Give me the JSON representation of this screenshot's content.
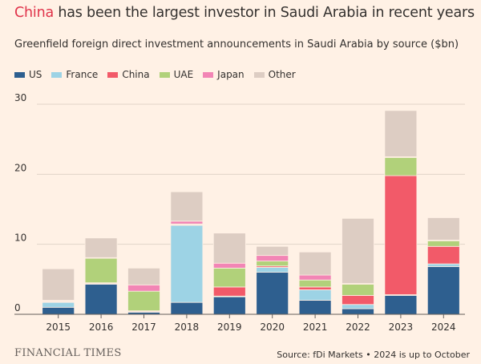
{
  "title_highlight": "China",
  "title_rest": " has been the largest investor in Saudi Arabia in recent years",
  "subtitle": "Greenfield foreign direct investment announcements in Saudi Arabia by source ($bn)",
  "brand": "FINANCIAL TIMES",
  "source": "Source: fDi Markets • 2024 is up to October",
  "colors": {
    "US": "#2e5f8f",
    "France": "#9dd3e5",
    "China": "#f25a69",
    "UAE": "#b1d17a",
    "Japan": "#f285b5",
    "Other": "#ddcdc3",
    "gridline": "#e1d4c8",
    "axis": "#66605c"
  },
  "chart_data": {
    "type": "bar",
    "stacked": true,
    "categories": [
      "2015",
      "2016",
      "2017",
      "2018",
      "2019",
      "2020",
      "2021",
      "2022",
      "2023",
      "2024"
    ],
    "ylim": [
      0,
      30
    ],
    "yticks": [
      0,
      10,
      20,
      30
    ],
    "legend_position": "top-left",
    "series": [
      {
        "name": "US",
        "values": [
          1.0,
          4.3,
          0.3,
          1.7,
          2.5,
          6.0,
          2.0,
          0.8,
          2.7,
          6.8
        ]
      },
      {
        "name": "France",
        "values": [
          0.7,
          0.1,
          0.1,
          11.0,
          0.1,
          0.7,
          1.5,
          0.6,
          0.1,
          0.4
        ]
      },
      {
        "name": "China",
        "values": [
          0.1,
          0.1,
          0.1,
          0.1,
          1.3,
          0.2,
          0.4,
          1.3,
          17.0,
          2.5
        ]
      },
      {
        "name": "UAE",
        "values": [
          0.1,
          3.5,
          2.8,
          0.1,
          2.7,
          0.7,
          1.0,
          1.6,
          2.6,
          0.8
        ]
      },
      {
        "name": "Japan",
        "values": [
          0.1,
          0.1,
          0.9,
          0.4,
          0.7,
          0.8,
          0.7,
          0.1,
          0.1,
          0.1
        ]
      },
      {
        "name": "Other",
        "values": [
          4.5,
          2.8,
          2.4,
          4.2,
          4.3,
          1.3,
          3.3,
          9.3,
          6.6,
          3.2
        ]
      }
    ]
  }
}
